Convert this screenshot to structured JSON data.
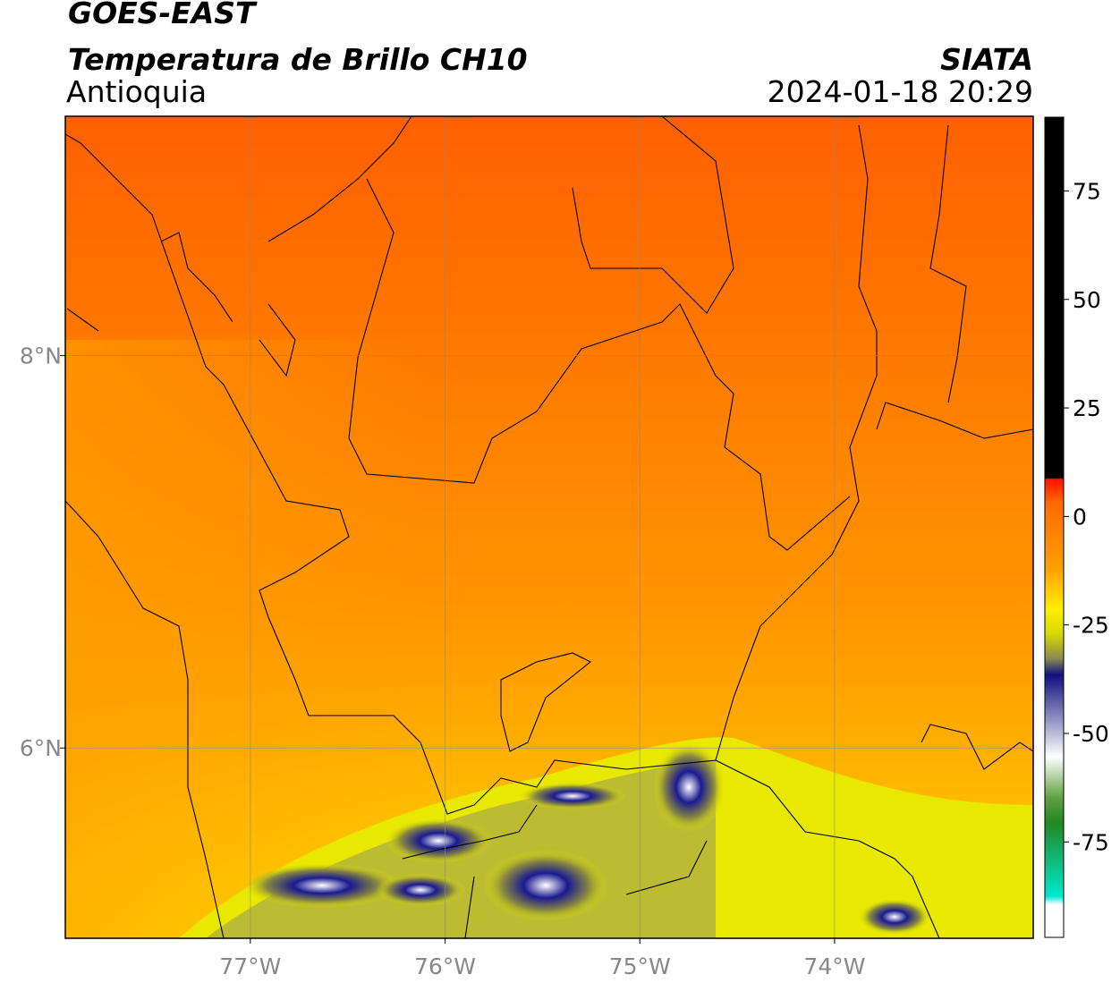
{
  "header": {
    "title": "GOES-EAST",
    "subtitle": "Temperatura de Brillo CH10",
    "region": "Antioquia",
    "source": "SIATA",
    "timestamp": "2024-01-18 20:29"
  },
  "map": {
    "lon_lim": [
      -77.95,
      -72.98
    ],
    "lat_lim": [
      5.03,
      9.22
    ],
    "lon_ticks": [
      {
        "value": -77,
        "label": "77°W"
      },
      {
        "value": -76,
        "label": "76°W"
      },
      {
        "value": -75,
        "label": "75°W"
      },
      {
        "value": -74,
        "label": "74°W"
      }
    ],
    "lat_ticks": [
      {
        "value": 8,
        "label": "8°N"
      },
      {
        "value": 6,
        "label": "6°N"
      }
    ]
  },
  "colorbar": {
    "lim": [
      -97,
      92
    ],
    "ticks": [
      75,
      50,
      25,
      0,
      -25,
      -50,
      -75
    ]
  }
}
